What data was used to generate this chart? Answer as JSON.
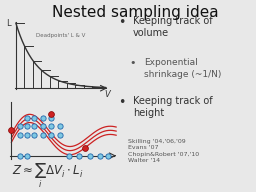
{
  "title": "Nested sampling idea",
  "title_fontsize": 11,
  "background_color": "#e8e8e8",
  "deadpoints_label": "Deadpoints' L & V",
  "references": "Skilling '04,'06,'09\nEvans '07\nChopin&Robert '07,'10\nWalter '14",
  "formula": "$Z \\approx \\sum_i \\Delta V_i \\cdot L_i$",
  "bar_color": "#333333",
  "curve_color": "#333333",
  "wave_color": "#cc2222",
  "dot_color": "#7ec8e3",
  "dot_edge_color": "#2266aa",
  "red_dot_color": "#cc2222",
  "axis_color": "#333333",
  "ref_fontsize": 4.5,
  "bullet_fontsize": 7,
  "sub_bullet_fontsize": 6.5
}
